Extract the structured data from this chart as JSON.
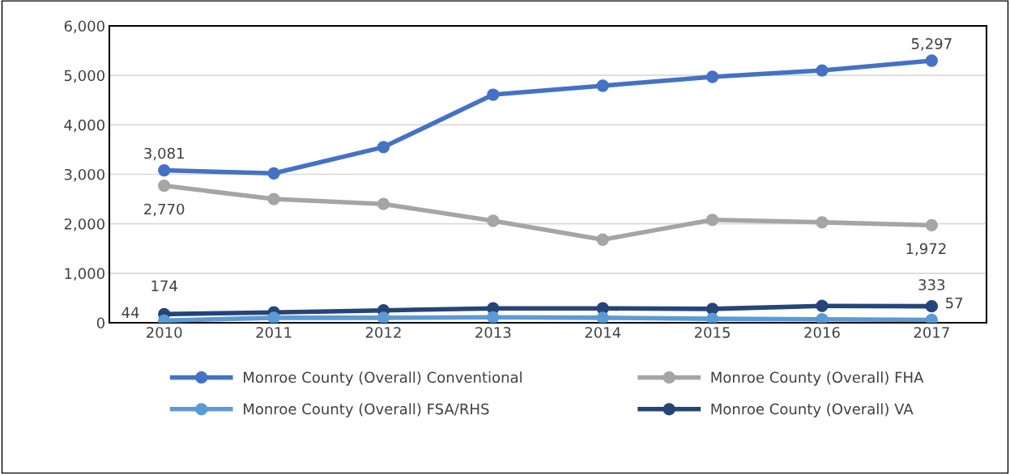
{
  "chart_data": {
    "type": "line",
    "categories": [
      "2010",
      "2011",
      "2012",
      "2013",
      "2014",
      "2015",
      "2016",
      "2017"
    ],
    "series": [
      {
        "name": "Monroe County (Overall) Conventional",
        "color": "#4472c4",
        "values": [
          3081,
          3020,
          3550,
          4610,
          4790,
          4970,
          5100,
          5297
        ],
        "value_labels": [
          "3,081",
          null,
          null,
          null,
          null,
          null,
          null,
          "5,297"
        ]
      },
      {
        "name": "Monroe County (Overall) FHA",
        "color": "#a5a5a5",
        "values": [
          2770,
          2500,
          2400,
          2060,
          1680,
          2080,
          2030,
          1972
        ],
        "value_labels": [
          "2,770",
          null,
          null,
          null,
          null,
          null,
          null,
          "1,972"
        ]
      },
      {
        "name": "Monroe County (Overall) FSA/RHS",
        "color": "#5b9bd5",
        "values": [
          44,
          100,
          100,
          110,
          100,
          80,
          70,
          57
        ],
        "value_labels": [
          "44",
          null,
          null,
          null,
          null,
          null,
          null,
          "57"
        ]
      },
      {
        "name": "Monroe County (Overall) VA",
        "color": "#264478",
        "values": [
          174,
          210,
          250,
          290,
          290,
          280,
          340,
          333
        ],
        "value_labels": [
          "174",
          null,
          null,
          null,
          null,
          null,
          null,
          "333"
        ]
      }
    ],
    "ylim": [
      0,
      6000
    ],
    "yticks": [
      {
        "value": 0,
        "label": "0"
      },
      {
        "value": 1000,
        "label": "1,000"
      },
      {
        "value": 2000,
        "label": "2,000"
      },
      {
        "value": 3000,
        "label": "3,000"
      },
      {
        "value": 4000,
        "label": "4,000"
      },
      {
        "value": 5000,
        "label": "5,000"
      },
      {
        "value": 6000,
        "label": "6,000"
      }
    ],
    "grid": "y",
    "legend": "bottom",
    "marker": "circle",
    "line_style": "solid"
  }
}
